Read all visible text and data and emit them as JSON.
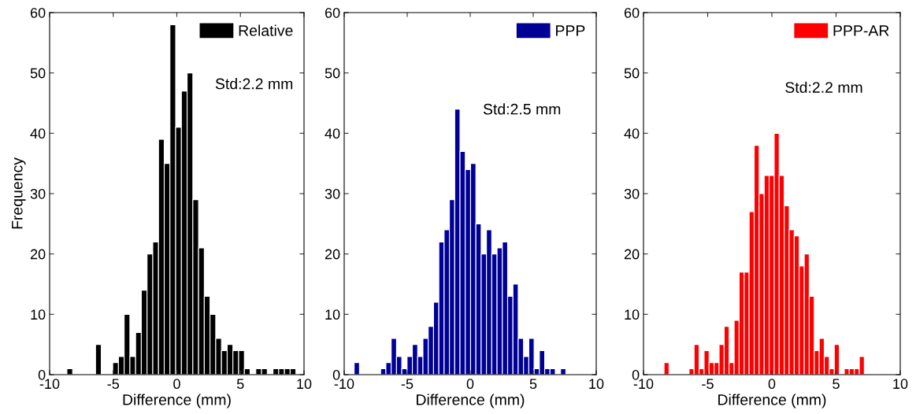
{
  "chart_data": [
    {
      "type": "histogram",
      "xlabel": "Difference (mm)",
      "ylabel": "Frequency",
      "legend": "top right",
      "annotations": [
        "Std:2.2 mm"
      ],
      "xlim": [
        -10,
        10
      ],
      "xticks": [
        -10,
        -5,
        0,
        5,
        10
      ],
      "ylim": [
        0,
        60
      ],
      "yticks": [
        0,
        10,
        20,
        30,
        40,
        50,
        60
      ],
      "bins": [
        -8.64,
        -8.19,
        -7.74,
        -7.29,
        -6.84,
        -6.39,
        -5.94,
        -5.49,
        -5.04,
        -4.59,
        -4.14,
        -3.69,
        -3.24,
        -2.79,
        -2.34,
        -1.89,
        -1.44,
        -0.99,
        -0.54,
        -0.09,
        0.36,
        0.81,
        1.26,
        1.71,
        2.16,
        2.61,
        3.06,
        3.51,
        3.96,
        4.41,
        4.86,
        5.31,
        5.76,
        6.21,
        6.66,
        7.11,
        7.56,
        8.01,
        8.46,
        8.91,
        9.36
      ],
      "series": [
        {
          "name": "Relative",
          "color": "#000000",
          "values": [
            1,
            0,
            0,
            0,
            0,
            5,
            0,
            0,
            2,
            3,
            10,
            3,
            7,
            14,
            20,
            22,
            39,
            35,
            58,
            41,
            47,
            50,
            29,
            21,
            13,
            10,
            6,
            4,
            5,
            4,
            4,
            1,
            0,
            1,
            1,
            0,
            1,
            1,
            1,
            1
          ]
        }
      ]
    },
    {
      "type": "histogram",
      "xlabel": "Difference (mm)",
      "legend": "top right",
      "annotations": [
        "Std:2.5 mm"
      ],
      "xlim": [
        -10,
        10
      ],
      "xticks": [
        -10,
        -5,
        0,
        5,
        10
      ],
      "ylim": [
        0,
        60
      ],
      "yticks": [
        0,
        10,
        20,
        30,
        40,
        50,
        60
      ],
      "bins": [
        -9.21,
        -8.79,
        -8.37,
        -7.95,
        -7.53,
        -7.11,
        -6.69,
        -6.27,
        -5.85,
        -5.43,
        -5.01,
        -4.59,
        -4.17,
        -3.75,
        -3.33,
        -2.91,
        -2.49,
        -2.07,
        -1.65,
        -1.23,
        -0.81,
        -0.39,
        0.03,
        0.45,
        0.87,
        1.29,
        1.71,
        2.13,
        2.55,
        2.97,
        3.39,
        3.81,
        4.23,
        4.65,
        5.07,
        5.49,
        5.91,
        6.33,
        6.75,
        7.17,
        7.59
      ],
      "series": [
        {
          "name": "PPP",
          "color": "#000096",
          "values": [
            2,
            0,
            0,
            0,
            0,
            1,
            2,
            6,
            3,
            1,
            3,
            5,
            3,
            6,
            8,
            12,
            22,
            24,
            29,
            44,
            37,
            34,
            35,
            25,
            20,
            24,
            20,
            21,
            22,
            13,
            15,
            6,
            3,
            6,
            1,
            4,
            1,
            1,
            0,
            1
          ]
        }
      ]
    },
    {
      "type": "histogram",
      "xlabel": "Difference (mm)",
      "legend": "top right",
      "annotations": [
        "Std:2.2 mm"
      ],
      "xlim": [
        -10,
        10
      ],
      "xticks": [
        -10,
        -5,
        0,
        5,
        10
      ],
      "ylim": [
        0,
        60
      ],
      "yticks": [
        0,
        10,
        20,
        30,
        40,
        50,
        60
      ],
      "bins": [
        -8.4,
        -8.01,
        -7.62,
        -7.23,
        -6.84,
        -6.45,
        -6.06,
        -5.67,
        -5.28,
        -4.89,
        -4.5,
        -4.11,
        -3.72,
        -3.33,
        -2.94,
        -2.55,
        -2.16,
        -1.77,
        -1.38,
        -0.99,
        -0.6,
        -0.21,
        0.18,
        0.57,
        0.96,
        1.35,
        1.74,
        2.13,
        2.52,
        2.91,
        3.3,
        3.69,
        4.08,
        4.47,
        4.86,
        5.25,
        5.64,
        6.03,
        6.42,
        6.81,
        7.2
      ],
      "series": [
        {
          "name": "PPP-AR",
          "color": "#ff0000",
          "values": [
            2,
            0,
            0,
            0,
            0,
            1,
            5,
            1,
            4,
            2,
            2,
            5,
            8,
            2,
            9,
            17,
            17,
            27,
            38,
            30,
            33,
            33,
            40,
            33,
            28,
            24,
            23,
            18,
            20,
            13,
            4,
            6,
            3,
            1,
            5,
            0,
            1,
            1,
            1,
            3
          ]
        }
      ]
    }
  ]
}
